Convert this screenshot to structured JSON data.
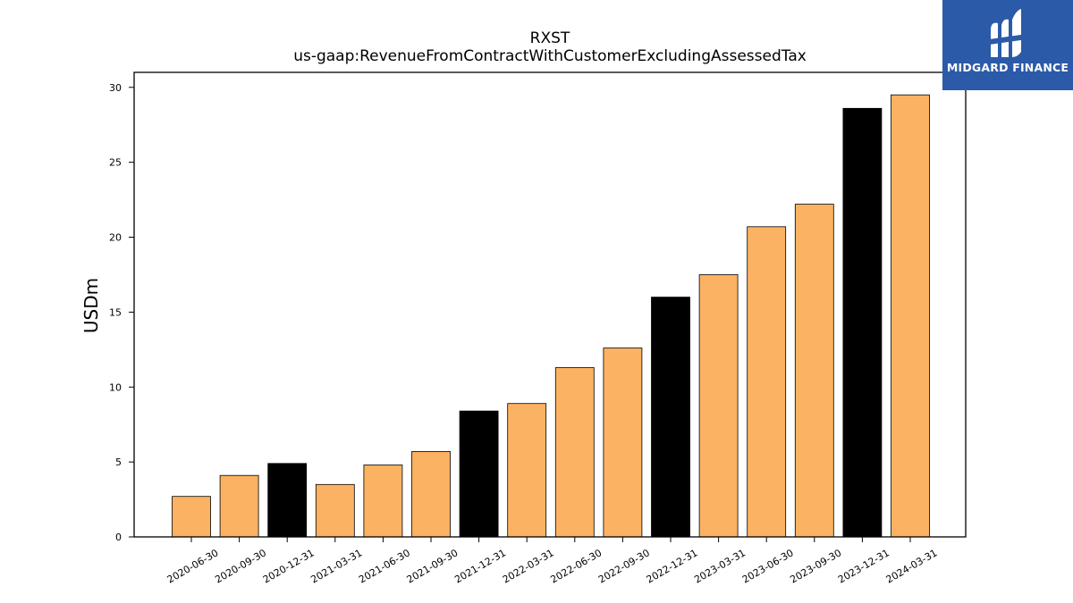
{
  "chart_data": {
    "type": "bar",
    "title": "RXST",
    "subtitle": "us-gaap:RevenueFromContractWithCustomerExcludingAssessedTax",
    "xlabel": "",
    "ylabel": "USDm",
    "ylim": [
      0,
      31
    ],
    "yticks": [
      0,
      5,
      10,
      15,
      20,
      25,
      30
    ],
    "grid": false,
    "categories": [
      "2020-06-30",
      "2020-09-30",
      "2020-12-31",
      "2021-03-31",
      "2021-06-30",
      "2021-09-30",
      "2021-12-31",
      "2022-03-31",
      "2022-06-30",
      "2022-09-30",
      "2022-12-31",
      "2023-03-31",
      "2023-06-30",
      "2023-09-30",
      "2023-12-31",
      "2024-03-31"
    ],
    "values": [
      2.7,
      4.1,
      4.9,
      3.5,
      4.8,
      5.7,
      8.4,
      8.9,
      11.3,
      12.6,
      16.0,
      17.5,
      20.7,
      22.2,
      28.6,
      29.5
    ],
    "colors": {
      "quarter": "#fbb262",
      "year_end": "#000000",
      "edge": "#000000"
    }
  },
  "logo": {
    "text": "MIDGARD FINANCE",
    "background": "#2b5aa8"
  }
}
